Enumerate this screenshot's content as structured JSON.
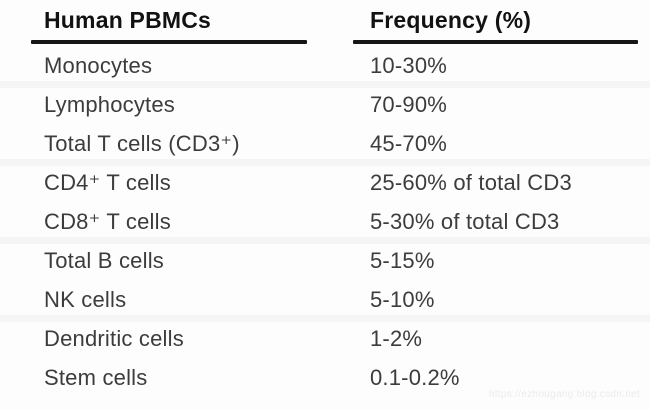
{
  "header": {
    "cell_type_label": "Human PBMCs",
    "frequency_label": "Frequency (%)"
  },
  "rows": [
    {
      "cell_type": "Monocytes",
      "frequency": "10-30%"
    },
    {
      "cell_type": "Lymphocytes",
      "frequency": "70-90%"
    },
    {
      "cell_type": "Total T cells (CD3⁺)",
      "frequency": "45-70%"
    },
    {
      "cell_type": "CD4⁺ T cells",
      "frequency": "25-60% of total CD3"
    },
    {
      "cell_type": "CD8⁺ T cells",
      "frequency": "5-30% of total CD3"
    },
    {
      "cell_type": "Total B cells",
      "frequency": "5-15%"
    },
    {
      "cell_type": "NK cells",
      "frequency": "5-10%"
    },
    {
      "cell_type": "Dendritic cells",
      "frequency": "1-2%"
    },
    {
      "cell_type": "Stem cells",
      "frequency": "0.1-0.2%"
    }
  ],
  "watermark": {
    "text": "https://ezhougang.blog.csdn.net"
  },
  "colors": {
    "background": "#fdfdfd",
    "header_text": "#121212",
    "body_text": "#3c3c3c",
    "rule": "#161616",
    "stripe": "#f5f5f5",
    "watermark_text": "#ebebeb"
  },
  "chart_data": {
    "type": "table",
    "title": "",
    "columns": [
      "Human PBMCs",
      "Frequency (%)"
    ],
    "rows": [
      [
        "Monocytes",
        "10-30%"
      ],
      [
        "Lymphocytes",
        "70-90%"
      ],
      [
        "Total T cells (CD3+)",
        "45-70%"
      ],
      [
        "CD4+ T cells",
        "25-60% of total CD3"
      ],
      [
        "CD8+ T cells",
        "5-30% of total CD3"
      ],
      [
        "Total B cells",
        "5-15%"
      ],
      [
        "NK cells",
        "5-10%"
      ],
      [
        "Dendritic cells",
        "1-2%"
      ],
      [
        "Stem cells",
        "0.1-0.2%"
      ]
    ],
    "layout_hints": {
      "header_underline": "separate thick rule under each column header",
      "grid": "off",
      "alternating_row_bands": true
    }
  }
}
